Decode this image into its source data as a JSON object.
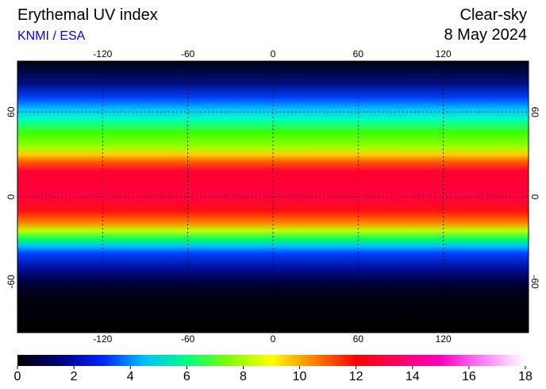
{
  "header": {
    "title": "Erythemal UV index",
    "source": "KNMI / ESA",
    "condition": "Clear-sky",
    "date": "8 May 2024"
  },
  "map": {
    "lonlim": [
      -180,
      180
    ],
    "latlim": [
      -96,
      96
    ],
    "lonticks": [
      -120,
      -60,
      0,
      60,
      120
    ],
    "latticks": [
      60,
      0,
      -60
    ]
  },
  "colorbar": {
    "lim": [
      0,
      18
    ],
    "ticks": [
      0,
      2,
      4,
      6,
      8,
      10,
      12,
      14,
      16,
      18
    ],
    "colors": [
      "#000000",
      "#000080",
      "#0020ff",
      "#00c0ff",
      "#00ff80",
      "#80ff00",
      "#ffff00",
      "#ff8000",
      "#ff0000",
      "#ff0060",
      "#ff00c0",
      "#ff80ff",
      "#ffffff"
    ]
  }
}
